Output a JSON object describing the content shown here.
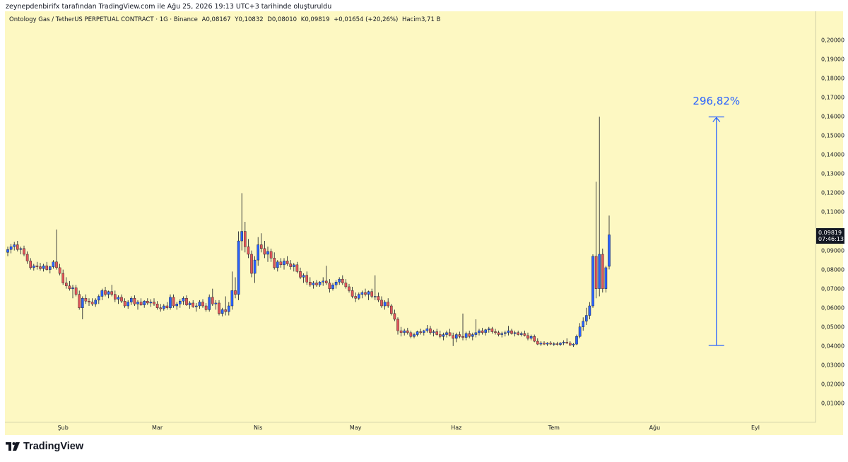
{
  "attribution": "zeynepdenbirifx tarafından TradingView.com ile Ağu 25, 2026 19:13 UTC+3 tarihinde oluşturuldu",
  "legend": {
    "symbol": "Ontology Gas / TetherUS PERPETUAL CONTRACT · 1G · Binance",
    "open": "A0,08167",
    "high": "Y0,10832",
    "low": "D0,08010",
    "close": "K0,09819",
    "change": "+0,01654 (+20,26%)",
    "volume": "Hacim3,71 B"
  },
  "price_badge": {
    "price": "0,09819",
    "countdown": "07:46:13"
  },
  "measure": {
    "label": "296,82%",
    "from_price": 0.0403,
    "to_price": 0.1599,
    "date_index": 218
  },
  "footer": {
    "brand": "TradingView"
  },
  "colors": {
    "up": "#2962ff",
    "down": "#e15759",
    "background": "#fdf8c2",
    "measure": "#2962ff"
  },
  "chart_data": {
    "type": "candlestick",
    "title": "Ontology Gas / TetherUS PERPETUAL CONTRACT · 1G · Binance",
    "ylim": [
      0,
      0.21
    ],
    "y_ticks": [
      "0,01000",
      "0,02000",
      "0,03000",
      "0,04000",
      "0,05000",
      "0,06000",
      "0,07000",
      "0,08000",
      "0,09000",
      "0,10000",
      "0,11000",
      "0,12000",
      "0,13000",
      "0,14000",
      "0,15000",
      "0,16000",
      "0,17000",
      "0,18000",
      "0,19000",
      "0,20000"
    ],
    "x_ticks": [
      {
        "label": "Şub",
        "index": 17
      },
      {
        "label": "Mar",
        "index": 46
      },
      {
        "label": "Nis",
        "index": 77
      },
      {
        "label": "May",
        "index": 107
      },
      {
        "label": "Haz",
        "index": 138
      },
      {
        "label": "Tem",
        "index": 168
      },
      {
        "label": "Ağu",
        "index": 199
      },
      {
        "label": "Eyl",
        "index": 230
      }
    ],
    "candles": [
      [
        0.089,
        0.092,
        0.087,
        0.0905
      ],
      [
        0.0905,
        0.0935,
        0.0885,
        0.092
      ],
      [
        0.092,
        0.0945,
        0.09,
        0.093
      ],
      [
        0.093,
        0.095,
        0.0895,
        0.0905
      ],
      [
        0.0905,
        0.092,
        0.088,
        0.091
      ],
      [
        0.091,
        0.0925,
        0.087,
        0.088
      ],
      [
        0.088,
        0.0895,
        0.083,
        0.0845
      ],
      [
        0.0845,
        0.086,
        0.08,
        0.081
      ],
      [
        0.081,
        0.083,
        0.0795,
        0.082
      ],
      [
        0.082,
        0.084,
        0.08,
        0.0815
      ],
      [
        0.0815,
        0.0835,
        0.0795,
        0.0805
      ],
      [
        0.0805,
        0.083,
        0.079,
        0.082
      ],
      [
        0.082,
        0.084,
        0.0795,
        0.08
      ],
      [
        0.08,
        0.082,
        0.078,
        0.0815
      ],
      [
        0.0815,
        0.085,
        0.0805,
        0.084
      ],
      [
        0.084,
        0.101,
        0.08,
        0.081
      ],
      [
        0.081,
        0.083,
        0.077,
        0.078
      ],
      [
        0.078,
        0.08,
        0.072,
        0.073
      ],
      [
        0.073,
        0.076,
        0.07,
        0.0715
      ],
      [
        0.0715,
        0.074,
        0.069,
        0.07
      ],
      [
        0.07,
        0.072,
        0.065,
        0.0705
      ],
      [
        0.0705,
        0.072,
        0.066,
        0.067
      ],
      [
        0.067,
        0.069,
        0.059,
        0.06
      ],
      [
        0.06,
        0.066,
        0.054,
        0.065
      ],
      [
        0.065,
        0.067,
        0.062,
        0.0635
      ],
      [
        0.0635,
        0.065,
        0.061,
        0.063
      ],
      [
        0.063,
        0.065,
        0.061,
        0.062
      ],
      [
        0.062,
        0.065,
        0.0605,
        0.064
      ],
      [
        0.064,
        0.067,
        0.062,
        0.066
      ],
      [
        0.066,
        0.07,
        0.064,
        0.069
      ],
      [
        0.069,
        0.071,
        0.066,
        0.067
      ],
      [
        0.067,
        0.069,
        0.065,
        0.0685
      ],
      [
        0.0685,
        0.072,
        0.066,
        0.067
      ],
      [
        0.067,
        0.069,
        0.063,
        0.0645
      ],
      [
        0.0645,
        0.0665,
        0.062,
        0.0655
      ],
      [
        0.0655,
        0.067,
        0.0625,
        0.0635
      ],
      [
        0.0635,
        0.065,
        0.06,
        0.061
      ],
      [
        0.061,
        0.064,
        0.0595,
        0.063
      ],
      [
        0.063,
        0.066,
        0.0615,
        0.065
      ],
      [
        0.065,
        0.0665,
        0.061,
        0.062
      ],
      [
        0.062,
        0.064,
        0.059,
        0.063
      ],
      [
        0.063,
        0.065,
        0.061,
        0.0615
      ],
      [
        0.0615,
        0.064,
        0.06,
        0.0635
      ],
      [
        0.0635,
        0.065,
        0.0615,
        0.0625
      ],
      [
        0.0625,
        0.0645,
        0.0605,
        0.063
      ],
      [
        0.063,
        0.065,
        0.061,
        0.062
      ],
      [
        0.062,
        0.0635,
        0.059,
        0.06
      ],
      [
        0.06,
        0.062,
        0.058,
        0.0595
      ],
      [
        0.0595,
        0.062,
        0.0585,
        0.061
      ],
      [
        0.061,
        0.063,
        0.059,
        0.06
      ],
      [
        0.06,
        0.067,
        0.059,
        0.0655
      ],
      [
        0.0655,
        0.067,
        0.06,
        0.061
      ],
      [
        0.061,
        0.063,
        0.059,
        0.062
      ],
      [
        0.062,
        0.0645,
        0.06,
        0.0635
      ],
      [
        0.0635,
        0.066,
        0.0615,
        0.065
      ],
      [
        0.065,
        0.0665,
        0.061,
        0.0615
      ],
      [
        0.0615,
        0.0635,
        0.0595,
        0.0625
      ],
      [
        0.0625,
        0.064,
        0.06,
        0.0605
      ],
      [
        0.0605,
        0.0625,
        0.058,
        0.061
      ],
      [
        0.061,
        0.064,
        0.0595,
        0.063
      ],
      [
        0.063,
        0.0645,
        0.06,
        0.061
      ],
      [
        0.061,
        0.0625,
        0.058,
        0.059
      ],
      [
        0.059,
        0.067,
        0.058,
        0.0655
      ],
      [
        0.0655,
        0.07,
        0.061,
        0.062
      ],
      [
        0.062,
        0.064,
        0.059,
        0.0625
      ],
      [
        0.0625,
        0.064,
        0.056,
        0.057
      ],
      [
        0.057,
        0.06,
        0.0555,
        0.059
      ],
      [
        0.059,
        0.066,
        0.056,
        0.058
      ],
      [
        0.058,
        0.063,
        0.056,
        0.061
      ],
      [
        0.061,
        0.079,
        0.059,
        0.069
      ],
      [
        0.069,
        0.076,
        0.065,
        0.067
      ],
      [
        0.067,
        0.1,
        0.064,
        0.095
      ],
      [
        0.095,
        0.12,
        0.09,
        0.1
      ],
      [
        0.1,
        0.105,
        0.089,
        0.092
      ],
      [
        0.092,
        0.096,
        0.086,
        0.088
      ],
      [
        0.088,
        0.09,
        0.076,
        0.078
      ],
      [
        0.078,
        0.087,
        0.073,
        0.085
      ],
      [
        0.085,
        0.097,
        0.082,
        0.093
      ],
      [
        0.093,
        0.099,
        0.089,
        0.091
      ],
      [
        0.091,
        0.095,
        0.086,
        0.088
      ],
      [
        0.088,
        0.092,
        0.084,
        0.0895
      ],
      [
        0.0895,
        0.091,
        0.084,
        0.086
      ],
      [
        0.086,
        0.089,
        0.08,
        0.081
      ],
      [
        0.081,
        0.085,
        0.079,
        0.084
      ],
      [
        0.084,
        0.086,
        0.081,
        0.0825
      ],
      [
        0.0825,
        0.086,
        0.08,
        0.0845
      ],
      [
        0.0845,
        0.087,
        0.082,
        0.083
      ],
      [
        0.083,
        0.085,
        0.08,
        0.0815
      ],
      [
        0.0815,
        0.0835,
        0.079,
        0.0825
      ],
      [
        0.0825,
        0.084,
        0.078,
        0.079
      ],
      [
        0.079,
        0.081,
        0.075,
        0.076
      ],
      [
        0.076,
        0.078,
        0.073,
        0.077
      ],
      [
        0.077,
        0.079,
        0.072,
        0.0735
      ],
      [
        0.0735,
        0.076,
        0.071,
        0.072
      ],
      [
        0.072,
        0.074,
        0.07,
        0.073
      ],
      [
        0.073,
        0.0745,
        0.071,
        0.072
      ],
      [
        0.072,
        0.074,
        0.071,
        0.0735
      ],
      [
        0.0735,
        0.076,
        0.0715,
        0.074
      ],
      [
        0.074,
        0.082,
        0.072,
        0.073
      ],
      [
        0.073,
        0.075,
        0.068,
        0.07
      ],
      [
        0.07,
        0.073,
        0.069,
        0.072
      ],
      [
        0.072,
        0.0745,
        0.07,
        0.0735
      ],
      [
        0.0735,
        0.076,
        0.072,
        0.075
      ],
      [
        0.075,
        0.077,
        0.072,
        0.073
      ],
      [
        0.073,
        0.075,
        0.07,
        0.071
      ],
      [
        0.071,
        0.0725,
        0.068,
        0.069
      ],
      [
        0.069,
        0.071,
        0.065,
        0.066
      ],
      [
        0.066,
        0.068,
        0.063,
        0.065
      ],
      [
        0.065,
        0.068,
        0.064,
        0.067
      ],
      [
        0.067,
        0.069,
        0.065,
        0.068
      ],
      [
        0.068,
        0.07,
        0.066,
        0.067
      ],
      [
        0.067,
        0.069,
        0.064,
        0.0685
      ],
      [
        0.0685,
        0.07,
        0.065,
        0.066
      ],
      [
        0.066,
        0.077,
        0.064,
        0.066
      ],
      [
        0.066,
        0.068,
        0.063,
        0.064
      ],
      [
        0.064,
        0.066,
        0.06,
        0.061
      ],
      [
        0.061,
        0.064,
        0.059,
        0.063
      ],
      [
        0.063,
        0.065,
        0.06,
        0.061
      ],
      [
        0.061,
        0.062,
        0.056,
        0.057
      ],
      [
        0.057,
        0.059,
        0.053,
        0.054
      ],
      [
        0.054,
        0.055,
        0.046,
        0.048
      ],
      [
        0.048,
        0.05,
        0.045,
        0.047
      ],
      [
        0.047,
        0.049,
        0.0455,
        0.048
      ],
      [
        0.048,
        0.0495,
        0.046,
        0.047
      ],
      [
        0.047,
        0.048,
        0.044,
        0.045
      ],
      [
        0.045,
        0.047,
        0.044,
        0.046
      ],
      [
        0.046,
        0.048,
        0.045,
        0.0475
      ],
      [
        0.0475,
        0.049,
        0.046,
        0.047
      ],
      [
        0.047,
        0.0485,
        0.0455,
        0.048
      ],
      [
        0.048,
        0.051,
        0.047,
        0.049
      ],
      [
        0.049,
        0.0505,
        0.046,
        0.047
      ],
      [
        0.047,
        0.0485,
        0.045,
        0.0475
      ],
      [
        0.0475,
        0.049,
        0.0455,
        0.046
      ],
      [
        0.046,
        0.048,
        0.044,
        0.045
      ],
      [
        0.045,
        0.047,
        0.043,
        0.046
      ],
      [
        0.046,
        0.048,
        0.0445,
        0.047
      ],
      [
        0.047,
        0.049,
        0.045,
        0.0455
      ],
      [
        0.0455,
        0.047,
        0.04,
        0.044
      ],
      [
        0.044,
        0.047,
        0.042,
        0.046
      ],
      [
        0.046,
        0.0475,
        0.044,
        0.045
      ],
      [
        0.045,
        0.057,
        0.043,
        0.0445
      ],
      [
        0.0445,
        0.0475,
        0.043,
        0.0465
      ],
      [
        0.0465,
        0.048,
        0.044,
        0.045
      ],
      [
        0.045,
        0.047,
        0.043,
        0.046
      ],
      [
        0.046,
        0.054,
        0.0445,
        0.047
      ],
      [
        0.047,
        0.049,
        0.0455,
        0.048
      ],
      [
        0.048,
        0.0495,
        0.046,
        0.047
      ],
      [
        0.047,
        0.049,
        0.0455,
        0.0485
      ],
      [
        0.0485,
        0.05,
        0.047,
        0.049
      ],
      [
        0.049,
        0.05,
        0.0465,
        0.0475
      ],
      [
        0.0475,
        0.049,
        0.046,
        0.047
      ],
      [
        0.047,
        0.048,
        0.045,
        0.046
      ],
      [
        0.046,
        0.0475,
        0.0445,
        0.0465
      ],
      [
        0.0465,
        0.048,
        0.045,
        0.047
      ],
      [
        0.047,
        0.0505,
        0.0455,
        0.048
      ],
      [
        0.048,
        0.049,
        0.046,
        0.0465
      ],
      [
        0.0465,
        0.048,
        0.045,
        0.047
      ],
      [
        0.047,
        0.048,
        0.0455,
        0.046
      ],
      [
        0.046,
        0.0475,
        0.045,
        0.0465
      ],
      [
        0.0465,
        0.048,
        0.045,
        0.0455
      ],
      [
        0.0455,
        0.047,
        0.043,
        0.044
      ],
      [
        0.044,
        0.046,
        0.043,
        0.045
      ],
      [
        0.045,
        0.046,
        0.042,
        0.0425
      ],
      [
        0.0425,
        0.044,
        0.0405,
        0.041
      ],
      [
        0.041,
        0.0425,
        0.04,
        0.0415
      ],
      [
        0.0415,
        0.0425,
        0.0405,
        0.041
      ],
      [
        0.041,
        0.042,
        0.04,
        0.0415
      ],
      [
        0.0415,
        0.0425,
        0.0405,
        0.041
      ],
      [
        0.041,
        0.042,
        0.04,
        0.0412
      ],
      [
        0.0412,
        0.0422,
        0.0402,
        0.0408
      ],
      [
        0.0408,
        0.042,
        0.04,
        0.0415
      ],
      [
        0.0415,
        0.043,
        0.0405,
        0.042
      ],
      [
        0.042,
        0.044,
        0.041,
        0.0415
      ],
      [
        0.0415,
        0.0425,
        0.04,
        0.0405
      ],
      [
        0.0405,
        0.0415,
        0.0395,
        0.041
      ],
      [
        0.041,
        0.046,
        0.0405,
        0.045
      ],
      [
        0.045,
        0.052,
        0.044,
        0.05
      ],
      [
        0.05,
        0.055,
        0.048,
        0.053
      ],
      [
        0.053,
        0.06,
        0.051,
        0.056
      ],
      [
        0.056,
        0.063,
        0.054,
        0.061
      ],
      [
        0.061,
        0.088,
        0.06,
        0.087
      ],
      [
        0.087,
        0.126,
        0.065,
        0.07
      ],
      [
        0.07,
        0.16,
        0.066,
        0.088
      ],
      [
        0.088,
        0.091,
        0.068,
        0.07
      ],
      [
        0.07,
        0.082,
        0.068,
        0.081
      ],
      [
        0.0817,
        0.1083,
        0.0801,
        0.0982
      ]
    ]
  }
}
